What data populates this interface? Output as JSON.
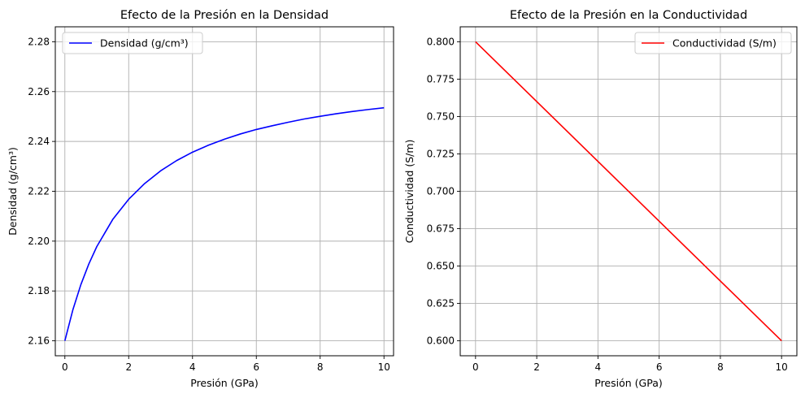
{
  "chart_data": [
    {
      "type": "line",
      "title": "Efecto de la Presión en la Densidad",
      "xlabel": "Presión (GPa)",
      "ylabel": "Densidad (g/cm³)",
      "xlim": [
        -0.3,
        10.3
      ],
      "ylim": [
        2.154,
        2.286
      ],
      "xticks": [
        0,
        2,
        4,
        6,
        8,
        10
      ],
      "xtick_labels": [
        "0",
        "2",
        "4",
        "6",
        "8",
        "10"
      ],
      "yticks": [
        2.16,
        2.18,
        2.2,
        2.22,
        2.24,
        2.26,
        2.28
      ],
      "ytick_labels": [
        "2.16",
        "2.18",
        "2.20",
        "2.22",
        "2.24",
        "2.26",
        "2.28"
      ],
      "grid": true,
      "legend_position": "upper left",
      "series": [
        {
          "name": "Densidad (g/cm³)",
          "color": "#0000ff",
          "x": [
            0,
            0.25,
            0.5,
            0.75,
            1,
            1.5,
            2,
            2.5,
            3,
            3.5,
            4,
            4.5,
            5,
            5.5,
            6,
            6.5,
            7,
            7.5,
            8,
            8.5,
            9,
            9.5,
            10
          ],
          "y": [
            2.16,
            2.1724,
            2.1825,
            2.1908,
            2.1978,
            2.2087,
            2.2168,
            2.2231,
            2.2282,
            2.2323,
            2.2357,
            2.2385,
            2.2409,
            2.243,
            2.2448,
            2.2463,
            2.2477,
            2.249,
            2.2501,
            2.2511,
            2.252,
            2.2528,
            2.2535
          ]
        }
      ]
    },
    {
      "type": "line",
      "title": "Efecto de la Presión en la Conductividad",
      "xlabel": "Presión (GPa)",
      "ylabel": "Conductividad (S/m)",
      "xlim": [
        -0.5,
        10.5
      ],
      "ylim": [
        0.59,
        0.81
      ],
      "xticks": [
        0,
        2,
        4,
        6,
        8,
        10
      ],
      "xtick_labels": [
        "0",
        "2",
        "4",
        "6",
        "8",
        "10"
      ],
      "yticks": [
        0.6,
        0.625,
        0.65,
        0.675,
        0.7,
        0.725,
        0.75,
        0.775,
        0.8
      ],
      "ytick_labels": [
        "0.600",
        "0.625",
        "0.650",
        "0.675",
        "0.700",
        "0.725",
        "0.750",
        "0.775",
        "0.800"
      ],
      "grid": true,
      "legend_position": "upper right",
      "series": [
        {
          "name": "Conductividad (S/m)",
          "color": "#ff0000",
          "x": [
            0,
            10
          ],
          "y": [
            0.8,
            0.6
          ]
        }
      ]
    }
  ]
}
